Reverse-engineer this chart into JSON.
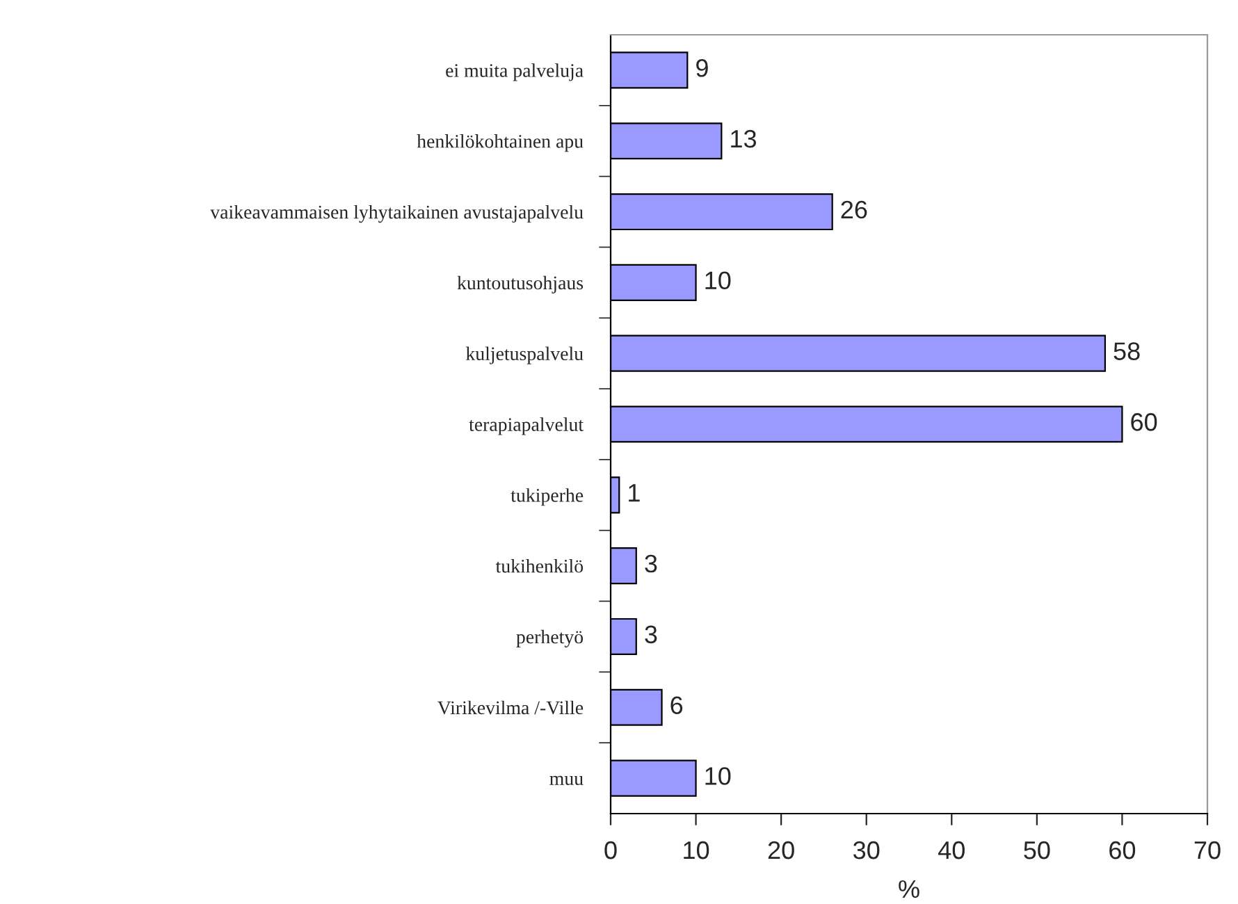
{
  "chart_data": {
    "type": "bar",
    "orientation": "horizontal",
    "xlabel": "%",
    "categories": [
      "ei muita palveluja",
      "henkilökohtainen apu",
      "vaikeavammaisen lyhytaikainen avustajapalvelu",
      "kuntoutusohjaus",
      "kuljetuspalvelu",
      "terapiapalvelut",
      "tukiperhe",
      "tukihenkilö",
      "perhetyö",
      "Virikevilma /-Ville",
      "muu"
    ],
    "values": [
      9,
      13,
      26,
      10,
      58,
      60,
      1,
      3,
      3,
      6,
      10
    ],
    "color": "#9999ff",
    "data_labels": true,
    "xlim": [
      0,
      70
    ],
    "xticks": [
      0,
      10,
      20,
      30,
      40,
      50,
      60,
      70
    ],
    "grid": false,
    "legend": false
  }
}
